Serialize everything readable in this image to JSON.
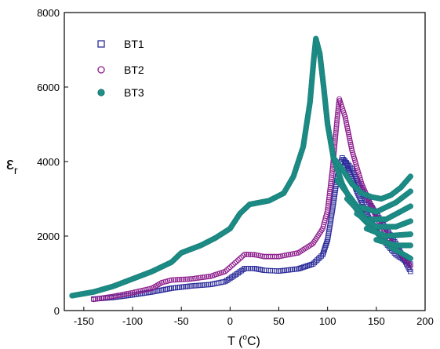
{
  "chart_data": {
    "type": "scatter",
    "xlabel": {
      "main": "T (",
      "sup": "o",
      "tail": "C)"
    },
    "ylabel": {
      "main": "ε",
      "sub": "r"
    },
    "xlim": [
      -170,
      200
    ],
    "ylim": [
      0,
      8000
    ],
    "x_ticks": [
      -150,
      -100,
      -50,
      0,
      50,
      100,
      150,
      200
    ],
    "y_ticks": [
      0,
      2000,
      4000,
      6000,
      8000
    ],
    "x_tick_labels": [
      "-150",
      "-100",
      "-50",
      "0",
      "50",
      "100",
      "150",
      "200"
    ],
    "y_tick_labels": [
      "0",
      "2000",
      "4000",
      "6000",
      "8000"
    ],
    "legend_position": "top-left",
    "series": [
      {
        "name": "BT1",
        "marker": "open-square",
        "color": "#2b2b9a",
        "curves": [
          {
            "points": [
              [
                -140,
                310
              ],
              [
                -120,
                350
              ],
              [
                -100,
                420
              ],
              [
                -80,
                500
              ],
              [
                -60,
                600
              ],
              [
                -40,
                660
              ],
              [
                -20,
                700
              ],
              [
                -5,
                780
              ],
              [
                5,
                950
              ],
              [
                15,
                1130
              ],
              [
                25,
                1130
              ],
              [
                35,
                1080
              ],
              [
                50,
                1060
              ],
              [
                70,
                1120
              ],
              [
                85,
                1250
              ],
              [
                95,
                1500
              ],
              [
                100,
                1900
              ],
              [
                105,
                2700
              ],
              [
                110,
                3600
              ],
              [
                115,
                4100
              ],
              [
                120,
                3900
              ],
              [
                130,
                3200
              ],
              [
                140,
                2600
              ],
              [
                150,
                2150
              ],
              [
                160,
                1800
              ],
              [
                170,
                1500
              ],
              [
                185,
                1250
              ]
            ]
          },
          {
            "points": [
              [
                115,
                4100
              ],
              [
                125,
                3800
              ],
              [
                140,
                3000
              ],
              [
                155,
                2400
              ],
              [
                170,
                1800
              ],
              [
                185,
                1050
              ]
            ]
          }
        ]
      },
      {
        "name": "BT2",
        "marker": "open-circle",
        "color": "#8b1a8b",
        "curves": [
          {
            "points": [
              [
                -140,
                300
              ],
              [
                -120,
                380
              ],
              [
                -100,
                480
              ],
              [
                -80,
                600
              ],
              [
                -70,
                750
              ],
              [
                -60,
                820
              ],
              [
                -40,
                850
              ],
              [
                -20,
                920
              ],
              [
                -5,
                1050
              ],
              [
                5,
                1280
              ],
              [
                15,
                1510
              ],
              [
                25,
                1500
              ],
              [
                35,
                1450
              ],
              [
                50,
                1450
              ],
              [
                70,
                1550
              ],
              [
                85,
                1800
              ],
              [
                95,
                2200
              ],
              [
                100,
                2700
              ],
              [
                105,
                3800
              ],
              [
                110,
                5200
              ],
              [
                112,
                5680
              ],
              [
                118,
                5200
              ],
              [
                125,
                4300
              ],
              [
                135,
                3400
              ],
              [
                150,
                2500
              ],
              [
                165,
                1850
              ],
              [
                185,
                1200
              ]
            ]
          }
        ]
      },
      {
        "name": "BT3",
        "marker": "filled-circle",
        "color": "#1f8f89",
        "curves": [
          {
            "points": [
              [
                -162,
                400
              ],
              [
                -140,
                500
              ],
              [
                -120,
                650
              ],
              [
                -100,
                850
              ],
              [
                -80,
                1050
              ],
              [
                -60,
                1300
              ],
              [
                -50,
                1550
              ],
              [
                -30,
                1750
              ],
              [
                -15,
                1950
              ],
              [
                0,
                2200
              ],
              [
                10,
                2600
              ],
              [
                20,
                2850
              ],
              [
                40,
                2950
              ],
              [
                55,
                3150
              ],
              [
                65,
                3600
              ],
              [
                75,
                4400
              ],
              [
                82,
                5600
              ],
              [
                86,
                6800
              ],
              [
                88,
                7300
              ],
              [
                92,
                6900
              ],
              [
                96,
                6000
              ],
              [
                100,
                5000
              ],
              [
                106,
                4100
              ],
              [
                115,
                3400
              ],
              [
                125,
                2900
              ],
              [
                135,
                2500
              ],
              [
                150,
                2100
              ],
              [
                165,
                1700
              ],
              [
                185,
                1400
              ]
            ]
          },
          {
            "points": [
              [
                106,
                4100
              ],
              [
                115,
                3800
              ],
              [
                125,
                3400
              ],
              [
                135,
                3150
              ],
              [
                145,
                3050
              ],
              [
                155,
                3000
              ],
              [
                165,
                3100
              ],
              [
                175,
                3300
              ],
              [
                185,
                3600
              ]
            ]
          },
          {
            "points": [
              [
                110,
                3500
              ],
              [
                130,
                2800
              ],
              [
                150,
                2650
              ],
              [
                170,
                2900
              ],
              [
                185,
                3200
              ]
            ]
          },
          {
            "points": [
              [
                120,
                3000
              ],
              [
                140,
                2450
              ],
              [
                160,
                2450
              ],
              [
                185,
                2800
              ]
            ]
          },
          {
            "points": [
              [
                130,
                2600
              ],
              [
                150,
                2250
              ],
              [
                170,
                2250
              ],
              [
                185,
                2400
              ]
            ]
          },
          {
            "points": [
              [
                140,
                2200
              ],
              [
                160,
                2000
              ],
              [
                185,
                2050
              ]
            ]
          },
          {
            "points": [
              [
                150,
                1900
              ],
              [
                170,
                1750
              ],
              [
                185,
                1750
              ]
            ]
          }
        ]
      }
    ]
  }
}
